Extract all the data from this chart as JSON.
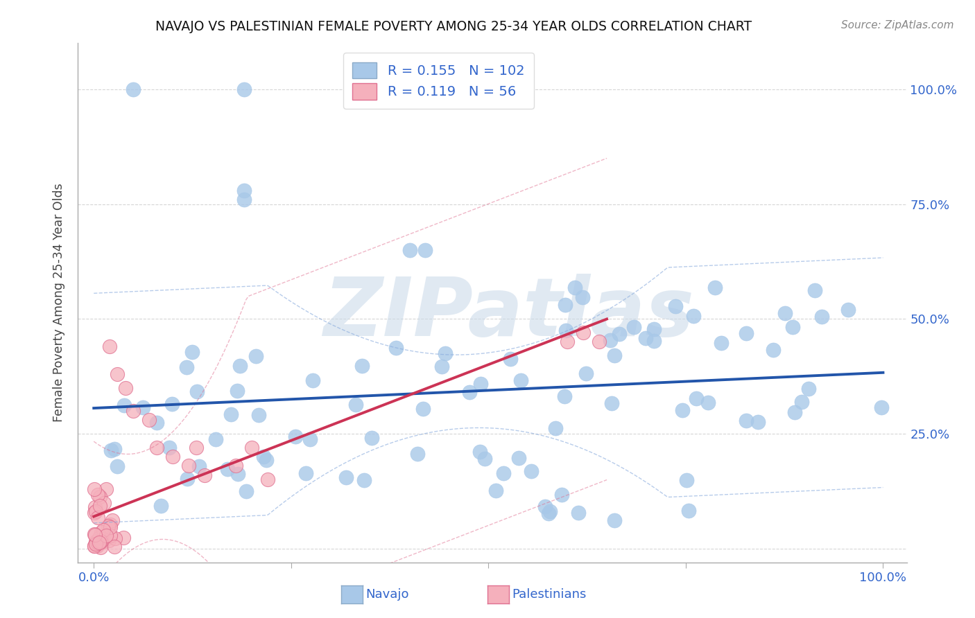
{
  "title": "NAVAJO VS PALESTINIAN FEMALE POVERTY AMONG 25-34 YEAR OLDS CORRELATION CHART",
  "source_text": "Source: ZipAtlas.com",
  "ylabel": "Female Poverty Among 25-34 Year Olds",
  "navajo_R": 0.155,
  "navajo_N": 102,
  "palestinian_R": 0.119,
  "palestinian_N": 56,
  "navajo_color": "#a8c8e8",
  "navajo_edge_color": "#a8c8e8",
  "navajo_line_color": "#2255aa",
  "navajo_ci_color": "#88aadd",
  "palestinian_color": "#f5b0bc",
  "palestinian_edge_color": "#e07090",
  "palestinian_line_color": "#cc3355",
  "palestinian_ci_color": "#e07090",
  "watermark": "ZIPatlas",
  "watermark_color": "#c8d8e8",
  "background_color": "#ffffff",
  "grid_color": "#cccccc",
  "title_color": "#111111",
  "axis_tick_color": "#3366cc",
  "ylabel_color": "#444444",
  "source_color": "#888888",
  "legend_text_color": "#3366cc"
}
